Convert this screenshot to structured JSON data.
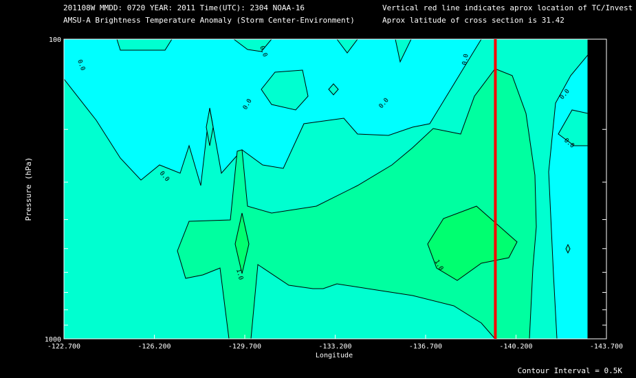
{
  "header": {
    "line1_left": "201108W  MMDD: 0720 YEAR: 2011 Time(UTC): 2304 NOAA-16",
    "line2_left": "AMSU-A Brightness Temperature Anomaly (Storm Center-Environment)",
    "line1_right": "Vertical red line indicates aprox location of TC/Invest",
    "line2_right": "Aprox latitude of cross section is 31.42"
  },
  "footer": {
    "contour_interval": "Contour Interval = 0.5K"
  },
  "colors": {
    "background": "#000000",
    "level_neg05": "#00ffff",
    "level_0": "#00ffd0",
    "level_05": "#00ffa0",
    "level_1": "#00ff70",
    "tc_line": "#ff0000"
  },
  "chart_data": {
    "type": "contour",
    "title": "AMSU-A Brightness Temperature Anomaly (Storm Center-Environment)",
    "xlabel": "Longitude",
    "ylabel": "Pressure (hPa)",
    "x_ticks": [
      "-122.700",
      "-126.200",
      "-129.700",
      "-133.200",
      "-136.700",
      "-140.200",
      "-143.700"
    ],
    "x_tick_values": [
      -122.7,
      -126.2,
      -129.7,
      -133.2,
      -136.7,
      -140.2,
      -143.7
    ],
    "y_ticks": [
      "100",
      "1000"
    ],
    "y_tick_values": [
      100,
      1000
    ],
    "ylim": [
      1000,
      100
    ],
    "xlim": [
      -122.7,
      -143.7
    ],
    "y_scale": "log",
    "tc_longitude": -139.4,
    "contour_interval": 0.5,
    "contour_labels": [
      "0.0",
      "0.0",
      "0.0",
      "0.0",
      "0.0",
      "0.0",
      "1.0",
      "1.0"
    ],
    "levels": [
      -0.5,
      0.0,
      0.5,
      1.0
    ]
  }
}
